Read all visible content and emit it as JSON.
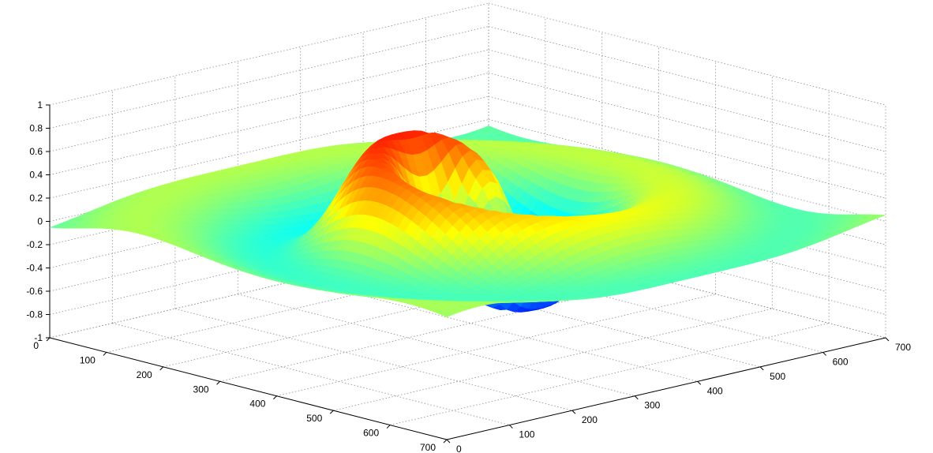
{
  "chart_data": {
    "type": "surface3d",
    "title": "",
    "xlabel": "",
    "ylabel": "",
    "zlabel": "",
    "x_ticks": [
      0,
      100,
      200,
      300,
      400,
      500,
      600,
      700
    ],
    "y_ticks": [
      0,
      100,
      200,
      300,
      400,
      500,
      600,
      700
    ],
    "z_ticks": [
      -1,
      -0.8,
      -0.6,
      -0.4,
      -0.2,
      0,
      0.2,
      0.4,
      0.6,
      0.8,
      1
    ],
    "z_tick_labels": [
      "-1",
      "-0.8",
      "-0.6",
      "-0.4",
      "-0.2",
      "0",
      "0.2",
      "0.4",
      "0.6",
      "0.8",
      "1"
    ],
    "xlim": [
      0,
      700
    ],
    "ylim": [
      0,
      700
    ],
    "zlim": [
      -1,
      1
    ],
    "grid": true,
    "colormap": "jet",
    "surface_peak_max": 1,
    "surface_peak_min": -1,
    "surface_center": [
      350,
      350
    ]
  }
}
